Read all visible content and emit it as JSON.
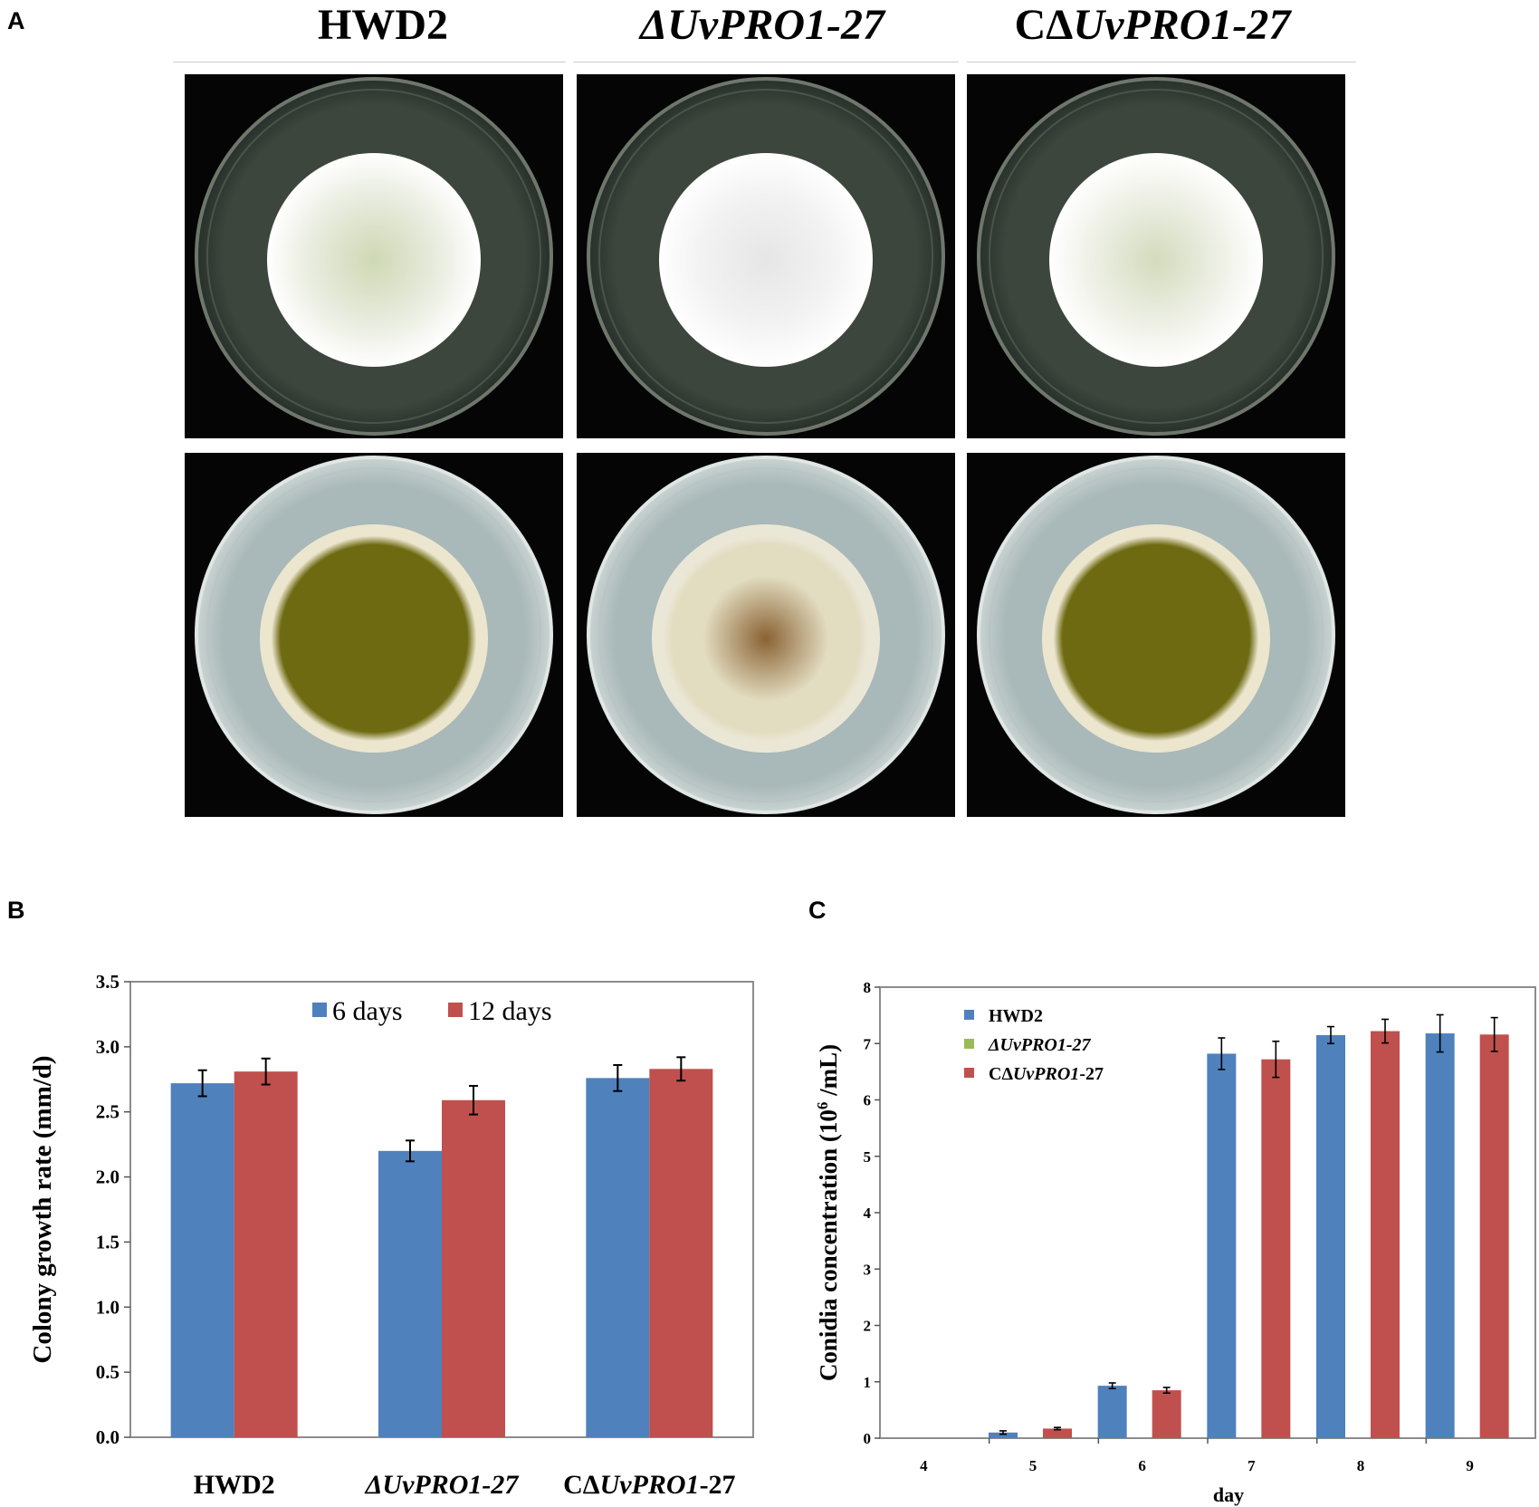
{
  "panels": {
    "a": "A",
    "b": "B",
    "c": "C"
  },
  "columns": [
    {
      "prefix": "",
      "italic": "",
      "name": "HWD2",
      "suffix": ""
    },
    {
      "prefix": "Δ",
      "italic": "UvPRO1",
      "suffix": "-27"
    },
    {
      "prefix": "CΔ",
      "italic": "UvPRO1",
      "suffix": "-27"
    }
  ],
  "photos": {
    "top_row": [
      {
        "strain": "HWD2",
        "colony_color": "#e9ecdf",
        "center_tint": "#cfd8b4"
      },
      {
        "strain": "ΔUvPRO1-27",
        "colony_color": "#f2f2f2",
        "center_tint": "#e6e6e6"
      },
      {
        "strain": "CΔUvPRO1-27",
        "colony_color": "#eef0e6",
        "center_tint": "#d3dbbd"
      }
    ],
    "bottom_row": [
      {
        "strain": "HWD2",
        "colony_color": "#6e6a12",
        "rim_color": "#ece6cf"
      },
      {
        "strain": "ΔUvPRO1-27",
        "colony_color": "#e2dcc0",
        "rim_color": "#ebe7d6",
        "center_tint": "#8a6233"
      },
      {
        "strain": "CΔUvPRO1-27",
        "colony_color": "#6e6a12",
        "rim_color": "#ece6cf"
      }
    ],
    "agar_color": "#a9b8b8"
  },
  "chart_data": [
    {
      "type": "bar",
      "categories": [
        {
          "prefix": "",
          "italic": "",
          "text": "HWD2",
          "suffix": ""
        },
        {
          "prefix": "Δ",
          "italic": "UvPRO1",
          "suffix": "-27"
        },
        {
          "prefix": "CΔ",
          "italic": "UvPRO1",
          "suffix": "-27"
        }
      ],
      "series": [
        {
          "name": "6 days",
          "color": "#4f81bd",
          "values": [
            2.72,
            2.2,
            2.76
          ],
          "errors": [
            0.1,
            0.08,
            0.1
          ]
        },
        {
          "name": "12 days",
          "color": "#c0504d",
          "values": [
            2.81,
            2.59,
            2.83
          ],
          "errors": [
            0.1,
            0.11,
            0.09
          ]
        }
      ],
      "ylabel": "Colony growth rate (mm/d)",
      "xlabel": "",
      "ylim": [
        0,
        3.5
      ],
      "yticks": [
        "0.0",
        "0.5",
        "1.0",
        "1.5",
        "2.0",
        "2.5",
        "3.0",
        "3.5"
      ],
      "grid": false,
      "legend": "top"
    },
    {
      "type": "bar",
      "categories": [
        "4",
        "5",
        "6",
        "7",
        "8",
        "9"
      ],
      "series": [
        {
          "name": "HWD2",
          "color": "#4f81bd",
          "values": [
            0,
            0.1,
            0.93,
            null,
            7.15,
            7.18
          ],
          "errors": [
            0,
            0.03,
            0.05,
            null,
            0.15,
            0.33
          ]
        },
        {
          "name": "ΔUvPRO1-27",
          "italic": "UvPRO1",
          "prefix": "Δ",
          "suffix": "-27",
          "color": "#9bbb59",
          "values": [
            0,
            0,
            0,
            0,
            0,
            0
          ],
          "errors": [
            0,
            0,
            0,
            0,
            0,
            0
          ]
        },
        {
          "name": "CΔUvPRO1-27",
          "italic": "UvPRO1",
          "prefix": "CΔ",
          "suffix": "-27",
          "color": "#c0504d",
          "values": [
            0,
            0.17,
            0.85,
            6.72,
            7.22,
            7.16
          ],
          "errors": [
            0,
            0.02,
            0.05,
            0.32,
            0.21,
            0.3
          ]
        }
      ],
      "extra_bar": {
        "category": "7",
        "series": "HWD2",
        "value": 6.82,
        "error": 0.28
      },
      "ylabel_pre": "Conidia concentration (10",
      "ylabel_sup": "6",
      "ylabel_post": " /mL)",
      "xlabel": "day",
      "ylim": [
        0,
        8
      ],
      "yticks": [
        "0",
        "1",
        "2",
        "3",
        "4",
        "5",
        "6",
        "7",
        "8"
      ],
      "grid": false,
      "legend": "top-left"
    }
  ]
}
